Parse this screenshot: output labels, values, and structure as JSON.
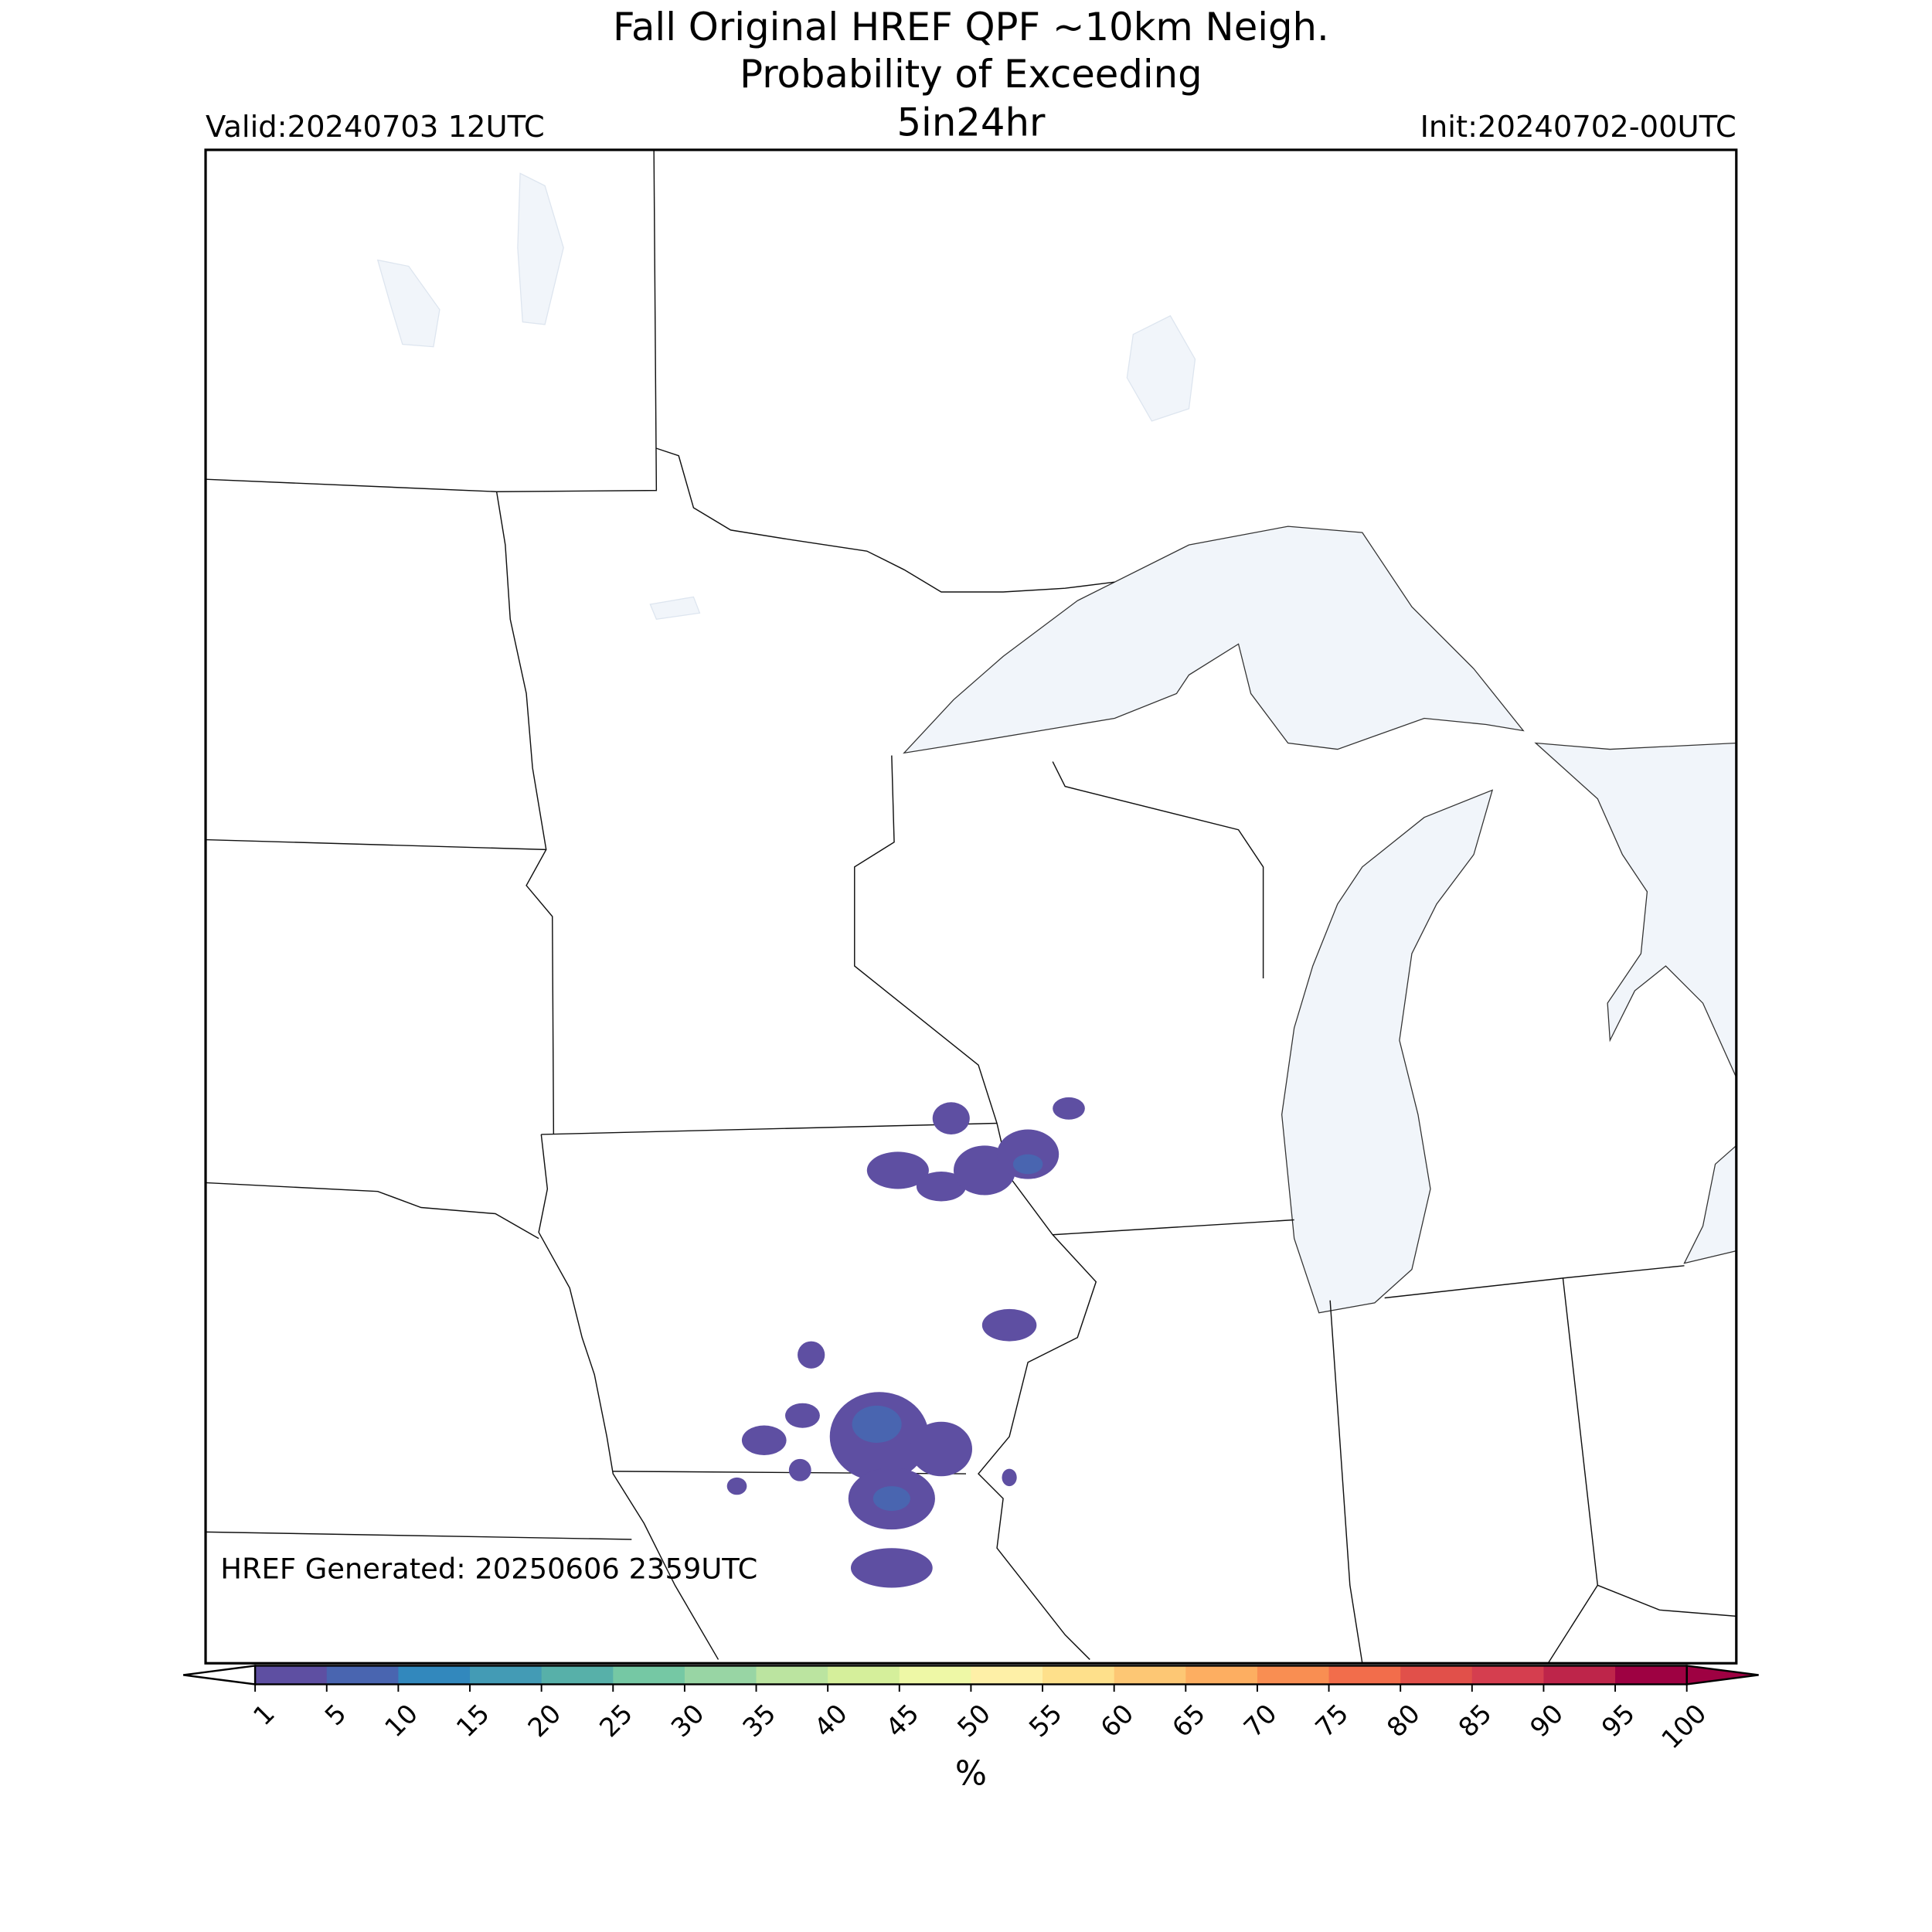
{
  "header": {
    "title": "Fall Original HREF QPF ~10km Neigh.",
    "subtitle": "Probability of Exceeding",
    "threshold": "5in24hr",
    "valid": "Valid:20240703 12UTC",
    "init": "Init:20240702-00UTC"
  },
  "annotation": "HREF Generated: 20250606 2359UTC",
  "colorbar": {
    "ticks": [
      1,
      5,
      10,
      15,
      20,
      25,
      30,
      35,
      40,
      45,
      50,
      55,
      60,
      65,
      70,
      75,
      80,
      85,
      90,
      95,
      100
    ],
    "colors": [
      "#5e4fa2",
      "#4965b0",
      "#3288bd",
      "#439bb5",
      "#57b0a9",
      "#75c8a4",
      "#98d5a4",
      "#bbe4a0",
      "#d5ef9b",
      "#eef8a6",
      "#fef0a7",
      "#fee08b",
      "#fdc774",
      "#fdae61",
      "#f98e52",
      "#f26d4b",
      "#e1504a",
      "#d53e4f",
      "#be254a",
      "#9e0142"
    ],
    "extend_low_color": "#ffffff",
    "extend_high_color": "#9e0142",
    "label": "%"
  }
}
